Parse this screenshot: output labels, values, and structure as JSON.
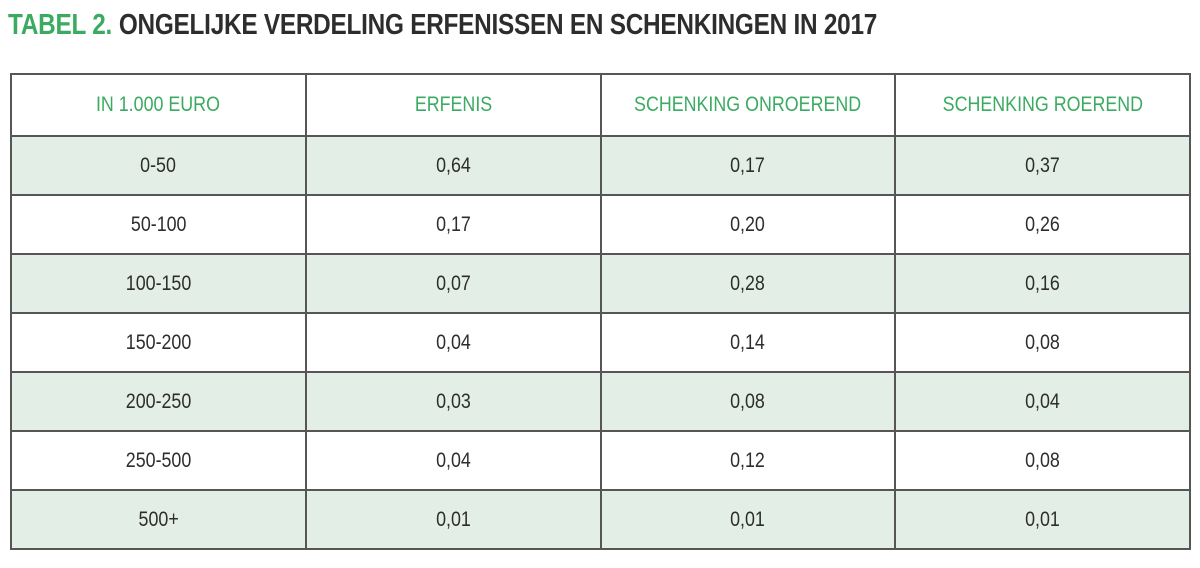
{
  "title": {
    "prefix": "TABEL 2.",
    "text": "ONGELIJKE VERDELING ERFENISSEN EN SCHENKINGEN IN 2017"
  },
  "colors": {
    "accent-green": "#3bab62",
    "row-green": "#e3efe6",
    "border-gray": "#565656",
    "text-dark": "#2d2d2d"
  },
  "table": {
    "headers": [
      "IN 1.000 EURO",
      "ERFENIS",
      "SCHENKING ONROEREND",
      "SCHENKING ROEREND"
    ],
    "rows": [
      [
        "0-50",
        "0,64",
        "0,17",
        "0,37"
      ],
      [
        "50-100",
        "0,17",
        "0,20",
        "0,26"
      ],
      [
        "100-150",
        "0,07",
        "0,28",
        "0,16"
      ],
      [
        "150-200",
        "0,04",
        "0,14",
        "0,08"
      ],
      [
        "200-250",
        "0,03",
        "0,08",
        "0,04"
      ],
      [
        "250-500",
        "0,04",
        "0,12",
        "0,08"
      ],
      [
        "500+",
        "0,01",
        "0,01",
        "0,01"
      ]
    ]
  },
  "chart_data": {
    "type": "table",
    "title": "TABEL 2. ONGELIJKE VERDELING ERFENISSEN EN SCHENKINGEN IN 2017",
    "columns": [
      "IN 1.000 EURO",
      "ERFENIS",
      "SCHENKING ONROEREND",
      "SCHENKING ROEREND"
    ],
    "categories": [
      "0-50",
      "50-100",
      "100-150",
      "150-200",
      "200-250",
      "250-500",
      "500+"
    ],
    "series": [
      {
        "name": "ERFENIS",
        "values": [
          0.64,
          0.17,
          0.07,
          0.04,
          0.03,
          0.04,
          0.01
        ]
      },
      {
        "name": "SCHENKING ONROEREND",
        "values": [
          0.17,
          0.2,
          0.28,
          0.14,
          0.08,
          0.12,
          0.01
        ]
      },
      {
        "name": "SCHENKING ROEREND",
        "values": [
          0.37,
          0.26,
          0.16,
          0.08,
          0.04,
          0.08,
          0.01
        ]
      }
    ],
    "value_format": "decimal-comma, share of total (fractions sum to 1 per column)"
  }
}
